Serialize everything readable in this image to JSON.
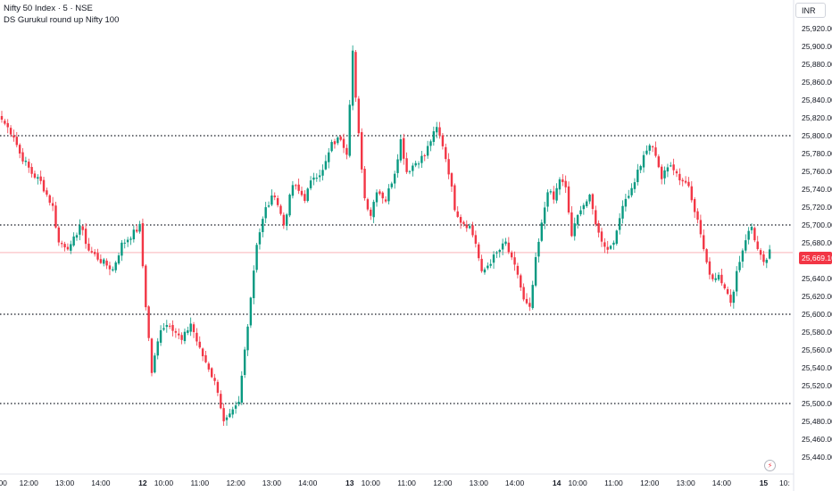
{
  "legend": {
    "symbol_title": "Nifty 50 Index · 5 · NSE",
    "indicator": "DS Gurukul round up Nifty 100"
  },
  "currency": "INR",
  "last_price_label": "25,669.10",
  "colors": {
    "up": "#089981",
    "down": "#f23645",
    "level": "#131722",
    "last": "#f23645",
    "axis_text": "#131722"
  },
  "icons": {
    "alert": "lightning-icon"
  },
  "chart_data": {
    "type": "candlestick",
    "title": "Nifty 50 Index · 5 · NSE",
    "y_ticks": [
      "25,920.00",
      "25,900.00",
      "25,880.00",
      "25,860.00",
      "25,840.00",
      "25,820.00",
      "25,800.00",
      "25,780.00",
      "25,760.00",
      "25,740.00",
      "25,720.00",
      "25,700.00",
      "25,680.00",
      "25,660.00",
      "25,640.00",
      "25,620.00",
      "25,600.00",
      "25,580.00",
      "25,560.00",
      "25,540.00",
      "25,520.00",
      "25,500.00",
      "25,480.00",
      "25,460.00",
      "25,440.00"
    ],
    "y_tick_values": [
      25920,
      25900,
      25880,
      25860,
      25840,
      25820,
      25800,
      25780,
      25760,
      25740,
      25720,
      25700,
      25680,
      25660,
      25640,
      25620,
      25600,
      25580,
      25560,
      25540,
      25520,
      25500,
      25480,
      25460,
      25440
    ],
    "ylim": [
      25432,
      25942
    ],
    "x_ticks": [
      {
        "label": ":00",
        "index": 0,
        "bold": false
      },
      {
        "label": "12:00",
        "index": 9,
        "bold": false
      },
      {
        "label": "13:00",
        "index": 21,
        "bold": false
      },
      {
        "label": "14:00",
        "index": 33,
        "bold": false
      },
      {
        "label": "12",
        "index": 47,
        "bold": true
      },
      {
        "label": "10:00",
        "index": 54,
        "bold": false
      },
      {
        "label": "11:00",
        "index": 66,
        "bold": false
      },
      {
        "label": "12:00",
        "index": 78,
        "bold": false
      },
      {
        "label": "13:00",
        "index": 90,
        "bold": false
      },
      {
        "label": "14:00",
        "index": 102,
        "bold": false
      },
      {
        "label": "13",
        "index": 116,
        "bold": true
      },
      {
        "label": "10:00",
        "index": 123,
        "bold": false
      },
      {
        "label": "11:00",
        "index": 135,
        "bold": false
      },
      {
        "label": "12:00",
        "index": 147,
        "bold": false
      },
      {
        "label": "13:00",
        "index": 159,
        "bold": false
      },
      {
        "label": "14:00",
        "index": 171,
        "bold": false
      },
      {
        "label": "14",
        "index": 185,
        "bold": true
      },
      {
        "label": "10:00",
        "index": 192,
        "bold": false
      },
      {
        "label": "11:00",
        "index": 204,
        "bold": false
      },
      {
        "label": "12:00",
        "index": 216,
        "bold": false
      },
      {
        "label": "13:00",
        "index": 228,
        "bold": false
      },
      {
        "label": "14:00",
        "index": 240,
        "bold": false
      },
      {
        "label": "15",
        "index": 254,
        "bold": true
      },
      {
        "label": "10:",
        "index": 261,
        "bold": false
      }
    ],
    "levels": [
      25800,
      25700,
      25600,
      25500
    ],
    "last_price": 25669.1,
    "anchors": [
      [
        0,
        25818
      ],
      [
        4,
        25800
      ],
      [
        6,
        25780
      ],
      [
        10,
        25758
      ],
      [
        13,
        25748
      ],
      [
        17,
        25720
      ],
      [
        19,
        25680
      ],
      [
        23,
        25675
      ],
      [
        26,
        25700
      ],
      [
        29,
        25672
      ],
      [
        33,
        25660
      ],
      [
        37,
        25650
      ],
      [
        40,
        25678
      ],
      [
        43,
        25688
      ],
      [
        46,
        25698
      ],
      [
        48,
        25610
      ],
      [
        50,
        25535
      ],
      [
        53,
        25585
      ],
      [
        56,
        25590
      ],
      [
        60,
        25570
      ],
      [
        63,
        25590
      ],
      [
        66,
        25560
      ],
      [
        69,
        25540
      ],
      [
        72,
        25515
      ],
      [
        74,
        25478
      ],
      [
        76,
        25485
      ],
      [
        79,
        25500
      ],
      [
        81,
        25560
      ],
      [
        83,
        25620
      ],
      [
        85,
        25680
      ],
      [
        88,
        25718
      ],
      [
        91,
        25735
      ],
      [
        94,
        25700
      ],
      [
        97,
        25745
      ],
      [
        101,
        25730
      ],
      [
        104,
        25755
      ],
      [
        107,
        25760
      ],
      [
        110,
        25790
      ],
      [
        113,
        25798
      ],
      [
        115,
        25782
      ],
      [
        117,
        25895
      ],
      [
        118,
        25840
      ],
      [
        119,
        25800
      ],
      [
        121,
        25730
      ],
      [
        123,
        25712
      ],
      [
        125,
        25740
      ],
      [
        128,
        25728
      ],
      [
        131,
        25760
      ],
      [
        133,
        25795
      ],
      [
        135,
        25760
      ],
      [
        138,
        25770
      ],
      [
        141,
        25778
      ],
      [
        143,
        25795
      ],
      [
        145,
        25808
      ],
      [
        147,
        25790
      ],
      [
        149,
        25760
      ],
      [
        151,
        25720
      ],
      [
        153,
        25705
      ],
      [
        156,
        25698
      ],
      [
        158,
        25680
      ],
      [
        160,
        25645
      ],
      [
        162,
        25655
      ],
      [
        165,
        25668
      ],
      [
        168,
        25680
      ],
      [
        170,
        25660
      ],
      [
        172,
        25645
      ],
      [
        174,
        25615
      ],
      [
        176,
        25605
      ],
      [
        178,
        25660
      ],
      [
        180,
        25700
      ],
      [
        182,
        25740
      ],
      [
        184,
        25728
      ],
      [
        186,
        25752
      ],
      [
        188,
        25740
      ],
      [
        190,
        25688
      ],
      [
        193,
        25720
      ],
      [
        196,
        25730
      ],
      [
        199,
        25690
      ],
      [
        202,
        25672
      ],
      [
        205,
        25690
      ],
      [
        207,
        25725
      ],
      [
        210,
        25740
      ],
      [
        212,
        25760
      ],
      [
        214,
        25775
      ],
      [
        216,
        25790
      ],
      [
        218,
        25780
      ],
      [
        220,
        25752
      ],
      [
        223,
        25770
      ],
      [
        226,
        25752
      ],
      [
        229,
        25745
      ],
      [
        231,
        25718
      ],
      [
        233,
        25690
      ],
      [
        235,
        25655
      ],
      [
        237,
        25640
      ],
      [
        239,
        25645
      ],
      [
        241,
        25632
      ],
      [
        243,
        25610
      ],
      [
        245,
        25648
      ],
      [
        248,
        25685
      ],
      [
        250,
        25698
      ],
      [
        252,
        25672
      ],
      [
        254,
        25655
      ],
      [
        256,
        25669
      ]
    ]
  }
}
